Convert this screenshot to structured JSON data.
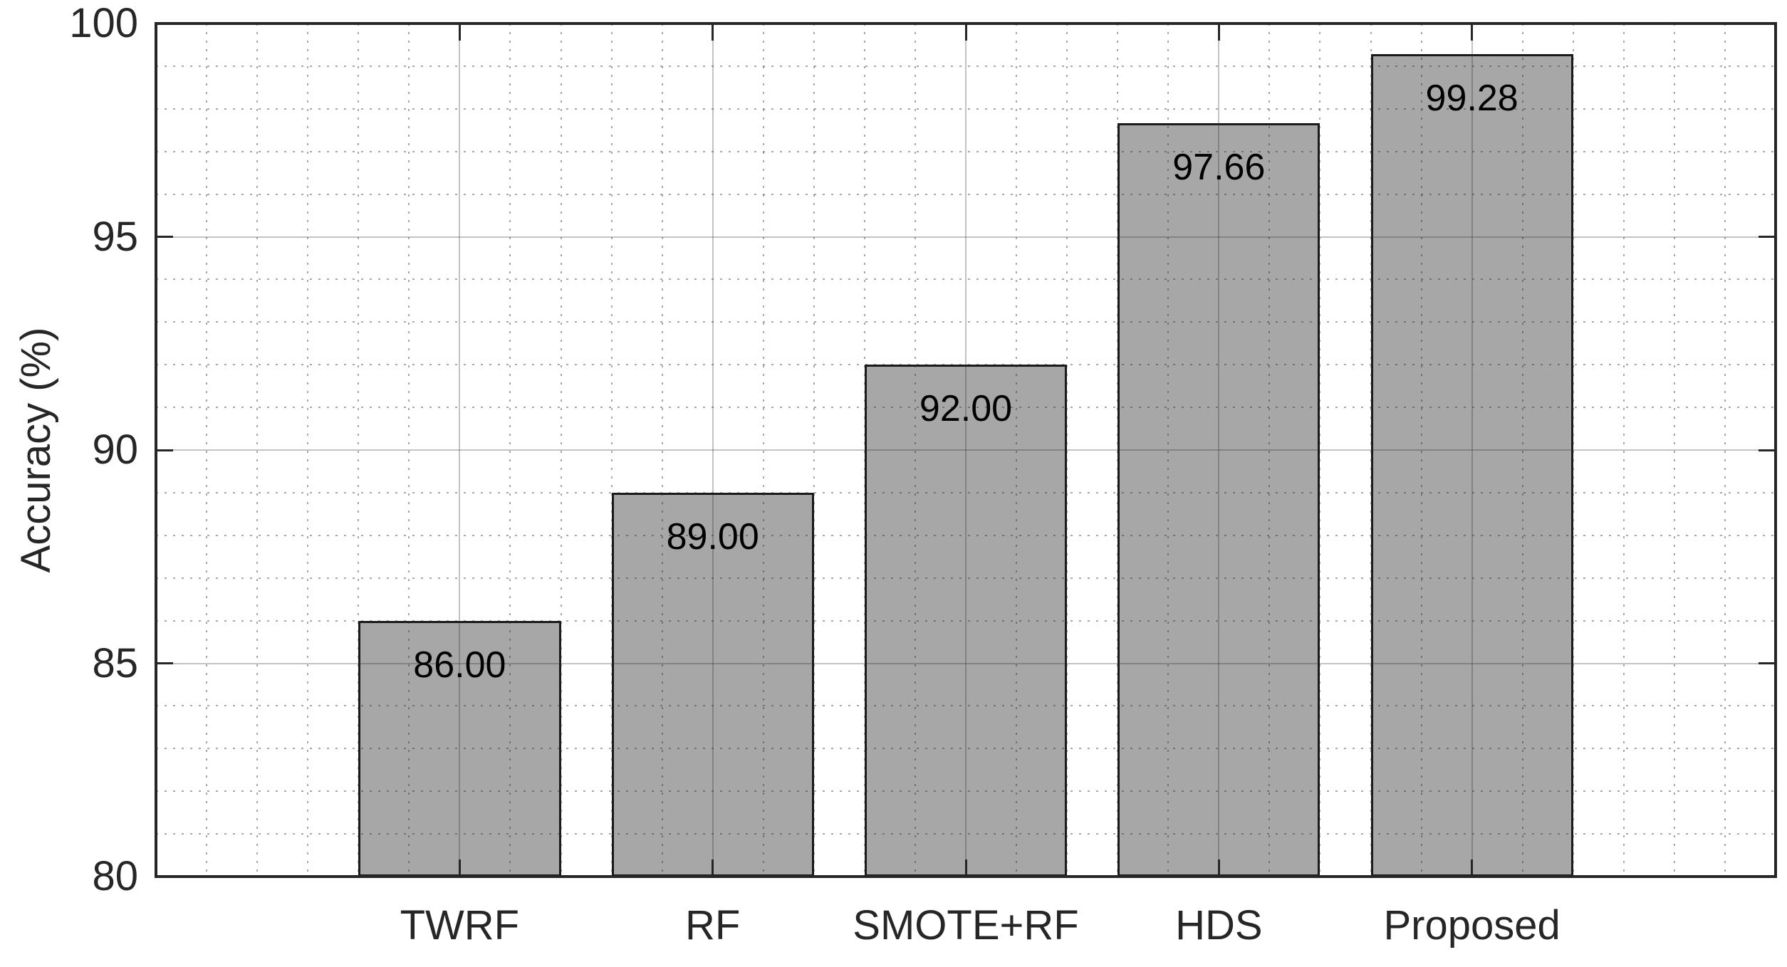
{
  "chart_data": {
    "type": "bar",
    "title": "",
    "xlabel": "",
    "ylabel": "Accuracy (%)",
    "categories": [
      "TWRF",
      "RF",
      "SMOTE+RF",
      "HDS",
      "Proposed"
    ],
    "values": [
      86.0,
      89.0,
      92.0,
      97.66,
      99.28
    ],
    "value_labels": [
      "86.00",
      "89.00",
      "92.00",
      "97.66",
      "99.28"
    ],
    "ylim": [
      80,
      100
    ],
    "yticks": [
      80,
      85,
      90,
      95,
      100
    ],
    "ytick_labels": [
      "80",
      "85",
      "90",
      "95",
      "100"
    ],
    "y_minor_step": 1,
    "grid": "on",
    "minor_grid": "on",
    "grid_style": "major solid, minor dotted, drawn above bars",
    "legend": "none",
    "bar_width_fraction": 0.8,
    "colors": {
      "bar_fill": "#a7a7a7",
      "bar_edge": "#1a1a1a",
      "axis_box": "#262626",
      "tick_mark": "#262626",
      "tick_label": "#262626",
      "value_label": "#000000",
      "background": "#ffffff"
    }
  }
}
